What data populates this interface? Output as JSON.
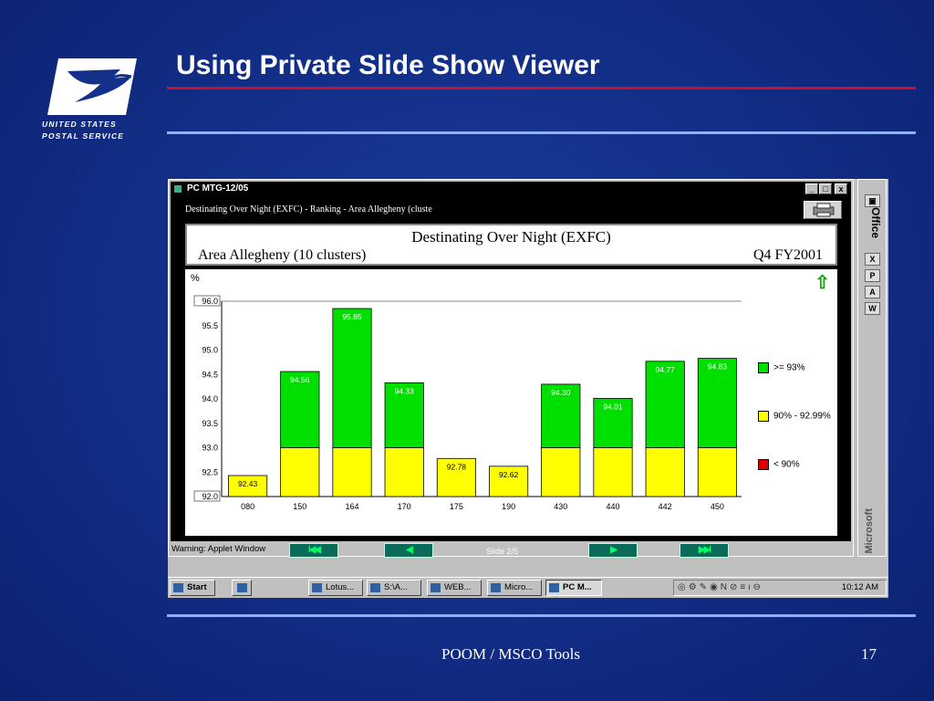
{
  "slide": {
    "title": "Using Private Slide Show Viewer",
    "footer_center": "POOM / MSCO Tools",
    "page_number": "17",
    "logo": {
      "line1": "UNITED STATES",
      "line2": "POSTAL SERVICE"
    },
    "colors": {
      "background": "#13308a",
      "accent_red": "#c8102e",
      "rule_blue": "#8fb0ff"
    }
  },
  "window": {
    "title": "PC MTG-12/05",
    "subtitle": "Destinating Over Night (EXFC) - Ranking - Area Allegheny (cluste",
    "controls": {
      "minimize": "_",
      "maximize": "□",
      "close": "x"
    },
    "header": {
      "main": "Destinating Over Night (EXFC)",
      "area": "Area Allegheny (10 clusters)",
      "period": "Q4 FY2001"
    },
    "nav": {
      "first": "I◀◀",
      "prev": "◀",
      "next": "▶",
      "last": "▶▶I",
      "slide_indicator": "Slide 2/5"
    },
    "warning": "Warning: Applet Window"
  },
  "chart_data": {
    "type": "bar",
    "ylabel": "%",
    "ylim": [
      92.0,
      96.0
    ],
    "yticks": [
      "92.0",
      "92.5",
      "93.0",
      "93.5",
      "94.0",
      "94.5",
      "95.0",
      "95.5",
      "96.0"
    ],
    "threshold_yellow_top": 93.0,
    "categories": [
      "080",
      "150",
      "164",
      "170",
      "175",
      "190",
      "430",
      "440",
      "442",
      "450"
    ],
    "values": [
      92.43,
      94.56,
      95.85,
      94.33,
      92.78,
      92.62,
      94.3,
      94.01,
      94.77,
      94.83
    ],
    "value_labels": [
      "92.43",
      "94.56",
      "95.85",
      "94.33",
      "92.78",
      "92.62",
      "94.30",
      "94.01",
      "94.77",
      "94.83"
    ],
    "legend": [
      {
        "label": ">= 93%",
        "color": "#00e000"
      },
      {
        "label": "90% - 92.99%",
        "color": "#ffff00"
      },
      {
        "label": "< 90%",
        "color": "#e00000"
      }
    ],
    "legend_position": "right"
  },
  "office_bar": {
    "label": "Office",
    "brand": "Microsoft",
    "icons": [
      "excel-icon",
      "powerpoint-icon",
      "access-icon",
      "word-icon"
    ],
    "icon_glyphs": [
      "X",
      "P",
      "A",
      "W"
    ]
  },
  "taskbar": {
    "start": "Start",
    "buttons": [
      "Lotus...",
      "S:\\A...",
      "WEB...",
      "Micro...",
      "PC M..."
    ],
    "time": "10:12 AM",
    "tray_glyphs": "◎⚙✎◉N⊘≡ι⊖"
  }
}
